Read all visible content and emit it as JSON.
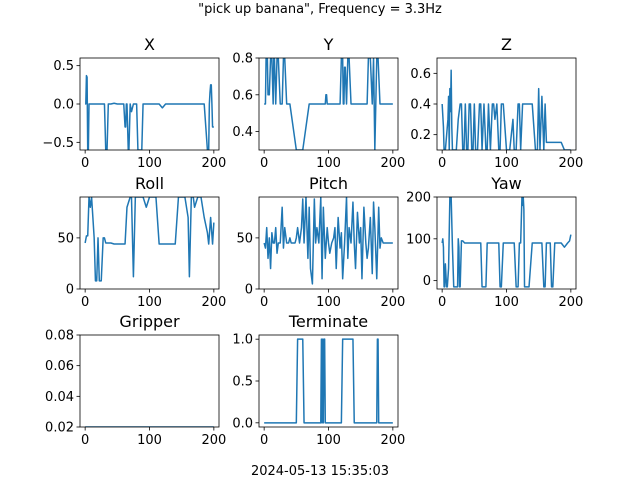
{
  "figure": {
    "suptitle": "\"pick up banana\", Frequency = 3.3Hz",
    "footer": "2024-05-13 15:35:03",
    "line_color": "#1f77b4"
  },
  "chart_data": [
    {
      "type": "line",
      "title": "X",
      "xlim": [
        -8,
        208
      ],
      "ylim": [
        -0.6,
        0.6
      ],
      "xticks": [
        0,
        100,
        200
      ],
      "yticks": [
        -0.5,
        0.0,
        0.5
      ],
      "ytick_labels": [
        "−0.5",
        "0.0",
        "0.5"
      ],
      "series": [
        {
          "x": [
            0,
            1,
            2,
            3,
            4,
            5,
            6,
            8,
            10,
            12,
            15,
            18,
            20,
            25,
            30,
            32,
            34,
            36,
            38,
            40,
            45,
            50,
            55,
            60,
            62,
            63,
            64,
            65,
            66,
            67,
            68,
            70,
            72,
            75,
            78,
            80,
            82,
            84,
            86,
            88,
            90,
            95,
            100,
            105,
            110,
            115,
            120,
            125,
            130,
            135,
            140,
            145,
            150,
            155,
            160,
            165,
            170,
            175,
            180,
            185,
            190,
            192,
            193,
            194,
            195,
            196,
            197,
            198,
            199,
            200
          ],
          "y": [
            0,
            0,
            0.37,
            0.35,
            -0.6,
            -0.6,
            0,
            0,
            0,
            0,
            0,
            0,
            0,
            0,
            0,
            -0.6,
            -0.6,
            0,
            0,
            0,
            0.01,
            0,
            0,
            0,
            -0.3,
            -0.3,
            0,
            0,
            -0.3,
            -0.6,
            -0.6,
            0,
            -0.1,
            0,
            0,
            0,
            -0.6,
            -0.6,
            -0.6,
            -0.6,
            0,
            0,
            0,
            0,
            0,
            0,
            -0.05,
            0,
            0,
            0,
            0,
            0,
            0,
            0,
            0,
            0,
            0,
            0,
            0,
            0,
            -0.6,
            -0.6,
            0,
            0.15,
            0.25,
            0.25,
            0,
            -0.3,
            -0.3,
            -0.3
          ]
        }
      ]
    },
    {
      "type": "line",
      "title": "Y",
      "xlim": [
        -8,
        208
      ],
      "ylim": [
        0.3,
        0.8
      ],
      "xticks": [
        0,
        100,
        200
      ],
      "yticks": [
        0.4,
        0.6,
        0.8
      ],
      "ytick_labels": [
        "0.4",
        "0.6",
        "0.8"
      ],
      "series": [
        {
          "x": [
            0,
            2,
            3,
            5,
            6,
            8,
            10,
            12,
            14,
            15,
            16,
            18,
            20,
            22,
            25,
            28,
            30,
            32,
            35,
            40,
            50,
            60,
            70,
            80,
            90,
            95,
            96,
            97,
            98,
            100,
            102,
            105,
            110,
            115,
            118,
            120,
            122,
            123,
            124,
            125,
            126,
            128,
            130,
            132,
            135,
            140,
            150,
            160,
            162,
            165,
            168,
            170,
            172,
            175,
            177,
            180,
            182,
            185,
            190,
            200
          ],
          "y": [
            0.55,
            0.55,
            0.8,
            0.8,
            0.6,
            0.6,
            0.8,
            0.8,
            0.55,
            0.8,
            0.8,
            0.55,
            0.8,
            0.8,
            0.55,
            0.55,
            0.8,
            0.8,
            0.55,
            0.55,
            0.3,
            0.3,
            0.55,
            0.55,
            0.55,
            0.55,
            0.6,
            0.6,
            0.55,
            0.55,
            0.55,
            0.55,
            0.55,
            0.55,
            0.55,
            0.8,
            0.8,
            0.55,
            0.55,
            0.75,
            0.75,
            0.55,
            0.8,
            0.8,
            0.55,
            0.55,
            0.55,
            0.55,
            0.8,
            0.8,
            0.55,
            0.8,
            0.3,
            0.8,
            0.8,
            0.55,
            0.55,
            0.55,
            0.55,
            0.55
          ]
        }
      ]
    },
    {
      "type": "line",
      "title": "Z",
      "xlim": [
        -8,
        208
      ],
      "ylim": [
        0.1,
        0.7
      ],
      "xticks": [
        0,
        100,
        200
      ],
      "yticks": [
        0.2,
        0.4,
        0.6
      ],
      "ytick_labels": [
        "0.2",
        "0.4",
        "0.6"
      ],
      "series": [
        {
          "x": [
            0,
            2,
            3,
            5,
            7,
            9,
            10,
            11,
            12,
            13,
            14,
            15,
            16,
            18,
            20,
            22,
            25,
            28,
            30,
            32,
            34,
            36,
            38,
            40,
            42,
            44,
            46,
            48,
            50,
            52,
            55,
            58,
            60,
            62,
            65,
            68,
            70,
            72,
            75,
            78,
            80,
            82,
            85,
            88,
            90,
            92,
            95,
            100,
            105,
            110,
            112,
            115,
            118,
            120,
            122,
            125,
            130,
            135,
            140,
            145,
            148,
            150,
            152,
            155,
            158,
            160,
            162,
            165,
            170,
            180,
            185,
            190,
            195,
            200
          ],
          "y": [
            0.4,
            0.25,
            0.1,
            0.1,
            0.2,
            0.3,
            0.45,
            0.1,
            0.5,
            0.35,
            0.62,
            0.25,
            0.1,
            0.1,
            0.1,
            0.1,
            0.3,
            0.4,
            0.4,
            0.1,
            0.1,
            0.4,
            0.1,
            0.1,
            0.4,
            0.4,
            0.1,
            0.1,
            0.4,
            0.1,
            0.1,
            0.4,
            0.4,
            0.1,
            0.4,
            0.1,
            0.1,
            0.4,
            0.1,
            0.4,
            0.4,
            0.3,
            0.4,
            0.1,
            0.1,
            0.4,
            0.4,
            0.1,
            0.1,
            0.3,
            0.1,
            0.1,
            0.4,
            0.4,
            0.1,
            0.4,
            0.4,
            0.4,
            0.4,
            0.1,
            0.1,
            0.5,
            0.1,
            0.45,
            0.1,
            0.4,
            0.15,
            0.15,
            0.15,
            0.15,
            0.15,
            0.1,
            0.1,
            0.1
          ]
        }
      ]
    },
    {
      "type": "line",
      "title": "Roll",
      "xlim": [
        -8,
        208
      ],
      "ylim": [
        0,
        90
      ],
      "xticks": [
        0,
        100,
        200
      ],
      "yticks": [
        0,
        50
      ],
      "ytick_labels": [
        "0",
        "50"
      ],
      "series": [
        {
          "x": [
            0,
            2,
            4,
            6,
            8,
            10,
            12,
            14,
            16,
            18,
            20,
            22,
            25,
            28,
            30,
            32,
            35,
            38,
            40,
            45,
            50,
            55,
            60,
            62,
            65,
            70,
            72,
            75,
            78,
            80,
            85,
            90,
            95,
            100,
            105,
            110,
            115,
            120,
            125,
            130,
            135,
            140,
            145,
            150,
            155,
            160,
            162,
            165,
            168,
            170,
            175,
            180,
            185,
            190,
            192,
            195,
            198,
            200
          ],
          "y": [
            45,
            52,
            52,
            90,
            80,
            90,
            70,
            50,
            8,
            8,
            50,
            8,
            8,
            50,
            50,
            45,
            45,
            45,
            45,
            44,
            44,
            44,
            44,
            44,
            80,
            90,
            90,
            12,
            90,
            90,
            90,
            90,
            80,
            90,
            90,
            90,
            44,
            44,
            44,
            44,
            44,
            44,
            90,
            90,
            90,
            70,
            12,
            90,
            90,
            80,
            90,
            90,
            70,
            55,
            44,
            70,
            44,
            65
          ]
        }
      ]
    },
    {
      "type": "line",
      "title": "Pitch",
      "xlim": [
        -8,
        208
      ],
      "ylim": [
        0,
        90
      ],
      "xticks": [
        0,
        100,
        200
      ],
      "yticks": [
        0,
        50
      ],
      "ytick_labels": [
        "0",
        "50"
      ],
      "series": [
        {
          "x": [
            0,
            2,
            4,
            6,
            8,
            10,
            12,
            14,
            16,
            18,
            20,
            22,
            25,
            28,
            30,
            32,
            35,
            38,
            40,
            42,
            45,
            48,
            50,
            52,
            55,
            58,
            60,
            62,
            65,
            68,
            70,
            72,
            75,
            78,
            80,
            82,
            85,
            88,
            90,
            92,
            95,
            98,
            100,
            102,
            105,
            108,
            110,
            112,
            115,
            118,
            120,
            122,
            125,
            128,
            130,
            132,
            135,
            138,
            140,
            142,
            145,
            148,
            150,
            152,
            155,
            158,
            160,
            162,
            165,
            168,
            170,
            172,
            175,
            178,
            180,
            182,
            185,
            188,
            190,
            195,
            200
          ],
          "y": [
            45,
            40,
            60,
            30,
            50,
            20,
            55,
            45,
            45,
            60,
            35,
            45,
            45,
            80,
            40,
            60,
            45,
            45,
            50,
            45,
            45,
            45,
            50,
            60,
            45,
            60,
            88,
            45,
            90,
            30,
            80,
            20,
            5,
            88,
            45,
            60,
            45,
            90,
            10,
            80,
            30,
            60,
            45,
            35,
            45,
            50,
            60,
            20,
            70,
            40,
            55,
            10,
            45,
            90,
            30,
            60,
            45,
            85,
            45,
            20,
            75,
            45,
            60,
            10,
            80,
            45,
            30,
            40,
            70,
            15,
            85,
            60,
            10,
            80,
            40,
            50,
            45,
            45,
            45,
            45,
            45
          ]
        }
      ]
    },
    {
      "type": "line",
      "title": "Yaw",
      "xlim": [
        -8,
        208
      ],
      "ylim": [
        -20,
        200
      ],
      "xticks": [
        0,
        100,
        200
      ],
      "yticks": [
        0,
        100,
        200
      ],
      "ytick_labels": [
        "0",
        "100",
        "200"
      ],
      "series": [
        {
          "x": [
            0,
            1,
            2,
            3,
            4,
            5,
            6,
            7,
            8,
            10,
            12,
            14,
            16,
            18,
            20,
            22,
            24,
            25,
            26,
            27,
            28,
            30,
            32,
            35,
            38,
            40,
            45,
            50,
            55,
            60,
            62,
            65,
            68,
            70,
            72,
            75,
            78,
            80,
            82,
            85,
            88,
            90,
            92,
            95,
            98,
            100,
            102,
            105,
            108,
            110,
            112,
            115,
            118,
            120,
            122,
            124,
            125,
            126,
            127,
            128,
            130,
            135,
            140,
            145,
            150,
            155,
            158,
            160,
            162,
            165,
            168,
            170,
            172,
            175,
            178,
            180,
            185,
            190,
            195,
            198,
            200
          ],
          "y": [
            90,
            100,
            80,
            -15,
            -15,
            40,
            10,
            -15,
            -15,
            30,
            200,
            200,
            80,
            -15,
            -15,
            -15,
            -15,
            100,
            80,
            -15,
            -15,
            95,
            95,
            90,
            90,
            90,
            90,
            90,
            90,
            90,
            -15,
            -15,
            -15,
            90,
            90,
            90,
            90,
            90,
            90,
            90,
            90,
            -15,
            -15,
            90,
            90,
            90,
            90,
            90,
            90,
            90,
            90,
            -15,
            -15,
            90,
            90,
            200,
            180,
            200,
            170,
            -15,
            -15,
            -15,
            90,
            90,
            90,
            90,
            -15,
            -15,
            90,
            90,
            90,
            -15,
            -15,
            90,
            90,
            90,
            90,
            80,
            90,
            95,
            110
          ]
        }
      ]
    },
    {
      "type": "line",
      "title": "Gripper",
      "xlim": [
        -8,
        208
      ],
      "ylim": [
        0.02,
        0.08
      ],
      "xticks": [
        0,
        100,
        200
      ],
      "yticks": [
        0.02,
        0.04,
        0.06,
        0.08
      ],
      "ytick_labels": [
        "0.02",
        "0.04",
        "0.06",
        "0.08"
      ],
      "series": [
        {
          "x": [
            0,
            200
          ],
          "y": [
            0.02,
            0.02
          ]
        }
      ]
    },
    {
      "type": "line",
      "title": "Terminate",
      "xlim": [
        -8,
        208
      ],
      "ylim": [
        -0.05,
        1.05
      ],
      "xticks": [
        0,
        100,
        200
      ],
      "yticks": [
        0.0,
        0.5,
        1.0
      ],
      "ytick_labels": [
        "0.0",
        "0.5",
        "1.0"
      ],
      "series": [
        {
          "x": [
            0,
            50,
            52,
            60,
            62,
            88,
            89,
            90,
            91,
            92,
            93,
            94,
            95,
            96,
            120,
            122,
            138,
            140,
            175,
            176,
            177,
            178,
            180,
            200
          ],
          "y": [
            0,
            0,
            1,
            1,
            0,
            0,
            1,
            0,
            1,
            0,
            1,
            1,
            0,
            0,
            0,
            1,
            1,
            0,
            0,
            1,
            1,
            0,
            0,
            0
          ]
        }
      ]
    }
  ]
}
